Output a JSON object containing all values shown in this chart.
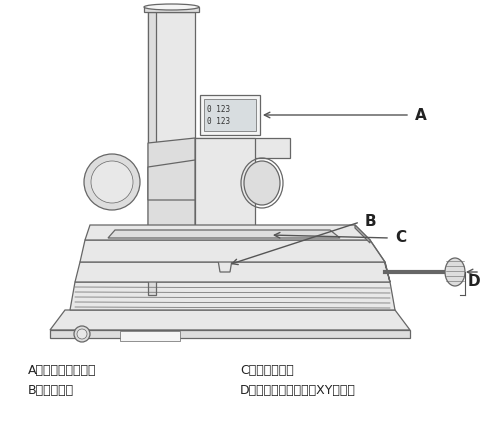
{
  "bg_color": "#ffffff",
  "lc": "#666666",
  "lc_dark": "#444444",
  "fill_white": "#f5f5f5",
  "fill_gray": "#dddddd",
  "fill_dark": "#bbbbbb",
  "fill_mid": "#e8e8e8",
  "label_color": "#222222",
  "arrow_color": "#555555",
  "font_size_label": 11,
  "font_size_legend": 9,
  "text_A": "A：测量数据显示部",
  "text_C": "C：可动载物台",
  "text_B": "B：接物透镜",
  "text_D": "D：载物台移动手柄（XY手柄）"
}
